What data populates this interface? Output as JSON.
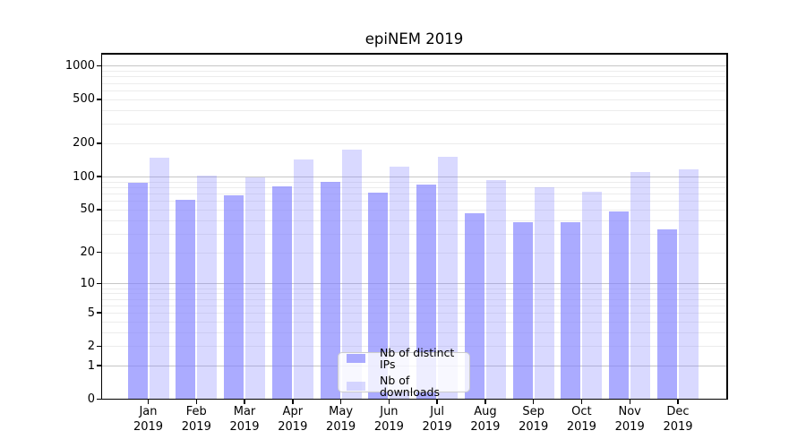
{
  "title": "epiNEM 2019",
  "legend": {
    "position": "lower-center-inside",
    "items": [
      {
        "label": "Nb of distinct IPs",
        "base_color": "#8080ff",
        "alpha": 0.66,
        "rendered_color": "#a9a9fa"
      },
      {
        "label": "Nb of downloads",
        "base_color": "#8080ff",
        "alpha": 0.3,
        "rendered_color": "#dadafa"
      }
    ]
  },
  "axes": {
    "y_scale": "log(value+1)",
    "y_tick_values": [
      1000,
      500,
      200,
      100,
      50,
      20,
      10,
      5,
      2,
      1,
      0
    ],
    "y_major_gridlines": [
      1,
      10,
      100,
      1000
    ],
    "x_months": [
      "Jan",
      "Feb",
      "Mar",
      "Apr",
      "May",
      "Jun",
      "Jul",
      "Aug",
      "Sep",
      "Oct",
      "Nov",
      "Dec"
    ],
    "x_year": "2019"
  },
  "chart_data": {
    "type": "bar",
    "title": "epiNEM 2019",
    "scale": "log1p (symlog-like, 0 shown at axis bottom)",
    "categories": [
      "Jan 2019",
      "Feb 2019",
      "Mar 2019",
      "Apr 2019",
      "May 2019",
      "Jun 2019",
      "Jul 2019",
      "Aug 2019",
      "Sep 2019",
      "Oct 2019",
      "Nov 2019",
      "Dec 2019"
    ],
    "series": [
      {
        "name": "Nb of distinct IPs",
        "values": [
          87,
          61,
          68,
          82,
          89,
          71,
          84,
          46,
          38,
          38,
          48,
          33
        ]
      },
      {
        "name": "Nb of downloads",
        "values": [
          149,
          102,
          99,
          142,
          175,
          124,
          152,
          92,
          80,
          72,
          110,
          116
        ]
      }
    ],
    "y_ticks": [
      0,
      1,
      2,
      5,
      10,
      20,
      50,
      100,
      200,
      500,
      1000
    ],
    "ylim": [
      0,
      1285
    ],
    "xlabel": "",
    "ylabel": "",
    "grid": "horizontal major + minor",
    "legend_position": "lower center inside plot"
  }
}
